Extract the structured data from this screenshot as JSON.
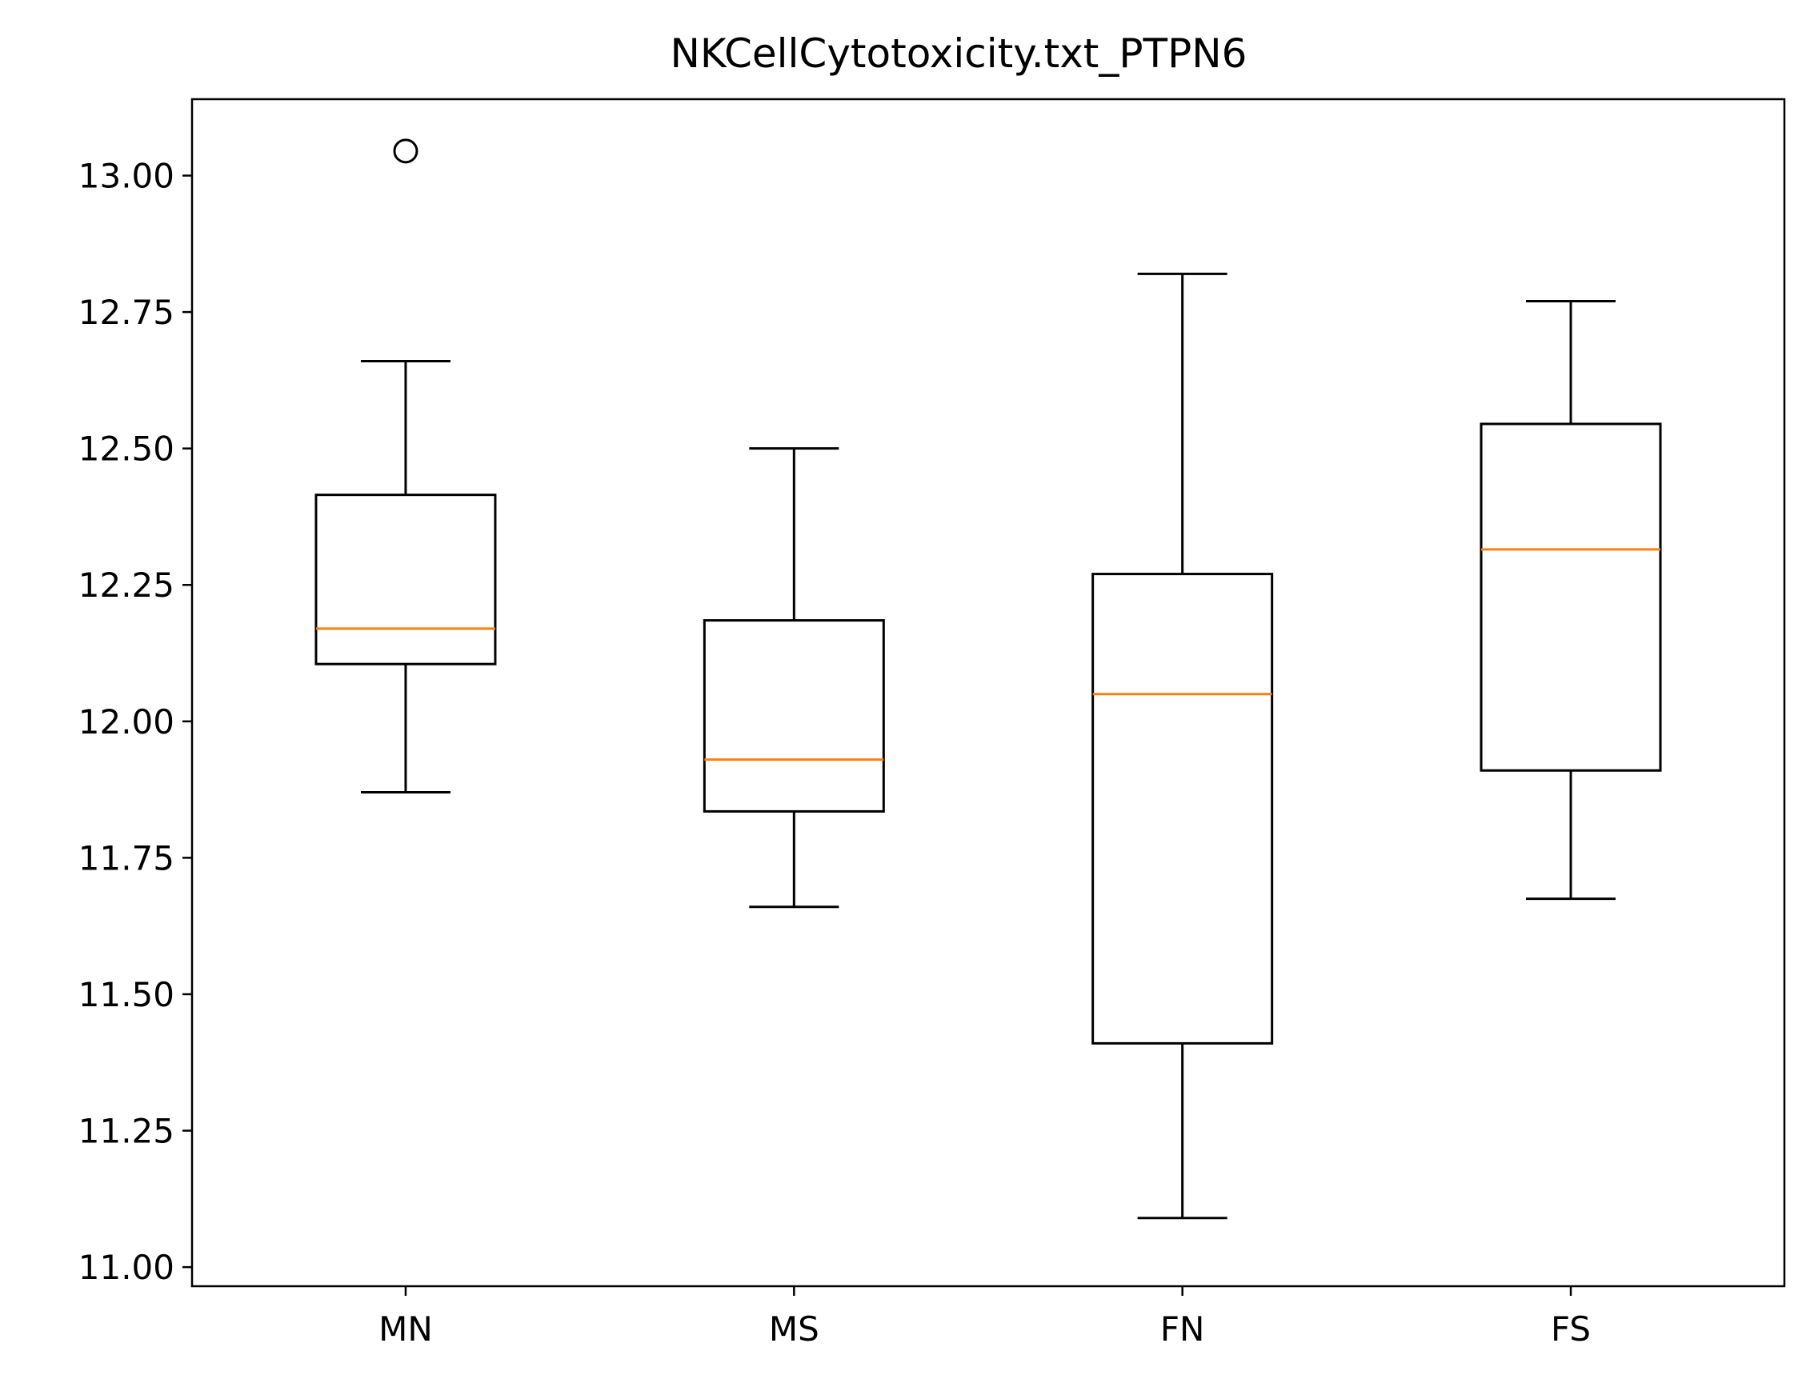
{
  "chart_data": {
    "type": "boxplot",
    "title": "NKCellCytotoxicity.txt_PTPN6",
    "xlabel": "",
    "ylabel": "",
    "ylim": [
      10.965,
      13.14
    ],
    "y_ticks": [
      {
        "value": 11.0,
        "label": "11.00"
      },
      {
        "value": 11.25,
        "label": "11.25"
      },
      {
        "value": 11.5,
        "label": "11.50"
      },
      {
        "value": 11.75,
        "label": "11.75"
      },
      {
        "value": 12.0,
        "label": "12.00"
      },
      {
        "value": 12.25,
        "label": "12.25"
      },
      {
        "value": 12.5,
        "label": "12.50"
      },
      {
        "value": 12.75,
        "label": "12.75"
      },
      {
        "value": 13.0,
        "label": "13.00"
      }
    ],
    "categories": [
      "MN",
      "MS",
      "FN",
      "FS"
    ],
    "boxes": [
      {
        "name": "MN",
        "whisker_low": 11.87,
        "q1": 12.105,
        "median": 12.17,
        "q3": 12.415,
        "whisker_high": 12.66,
        "outliers": [
          13.045
        ]
      },
      {
        "name": "MS",
        "whisker_low": 11.66,
        "q1": 11.835,
        "median": 11.93,
        "q3": 12.185,
        "whisker_high": 12.5,
        "outliers": []
      },
      {
        "name": "FN",
        "whisker_low": 11.09,
        "q1": 11.41,
        "median": 12.05,
        "q3": 12.27,
        "whisker_high": 12.82,
        "outliers": []
      },
      {
        "name": "FS",
        "whisker_low": 11.675,
        "q1": 11.91,
        "median": 12.315,
        "q3": 12.545,
        "whisker_high": 12.77,
        "outliers": []
      }
    ],
    "grid": false,
    "legend": "none",
    "colors": {
      "box": "#000000",
      "median": "#ff7f0e",
      "axes": "#000000",
      "background": "#ffffff"
    }
  }
}
